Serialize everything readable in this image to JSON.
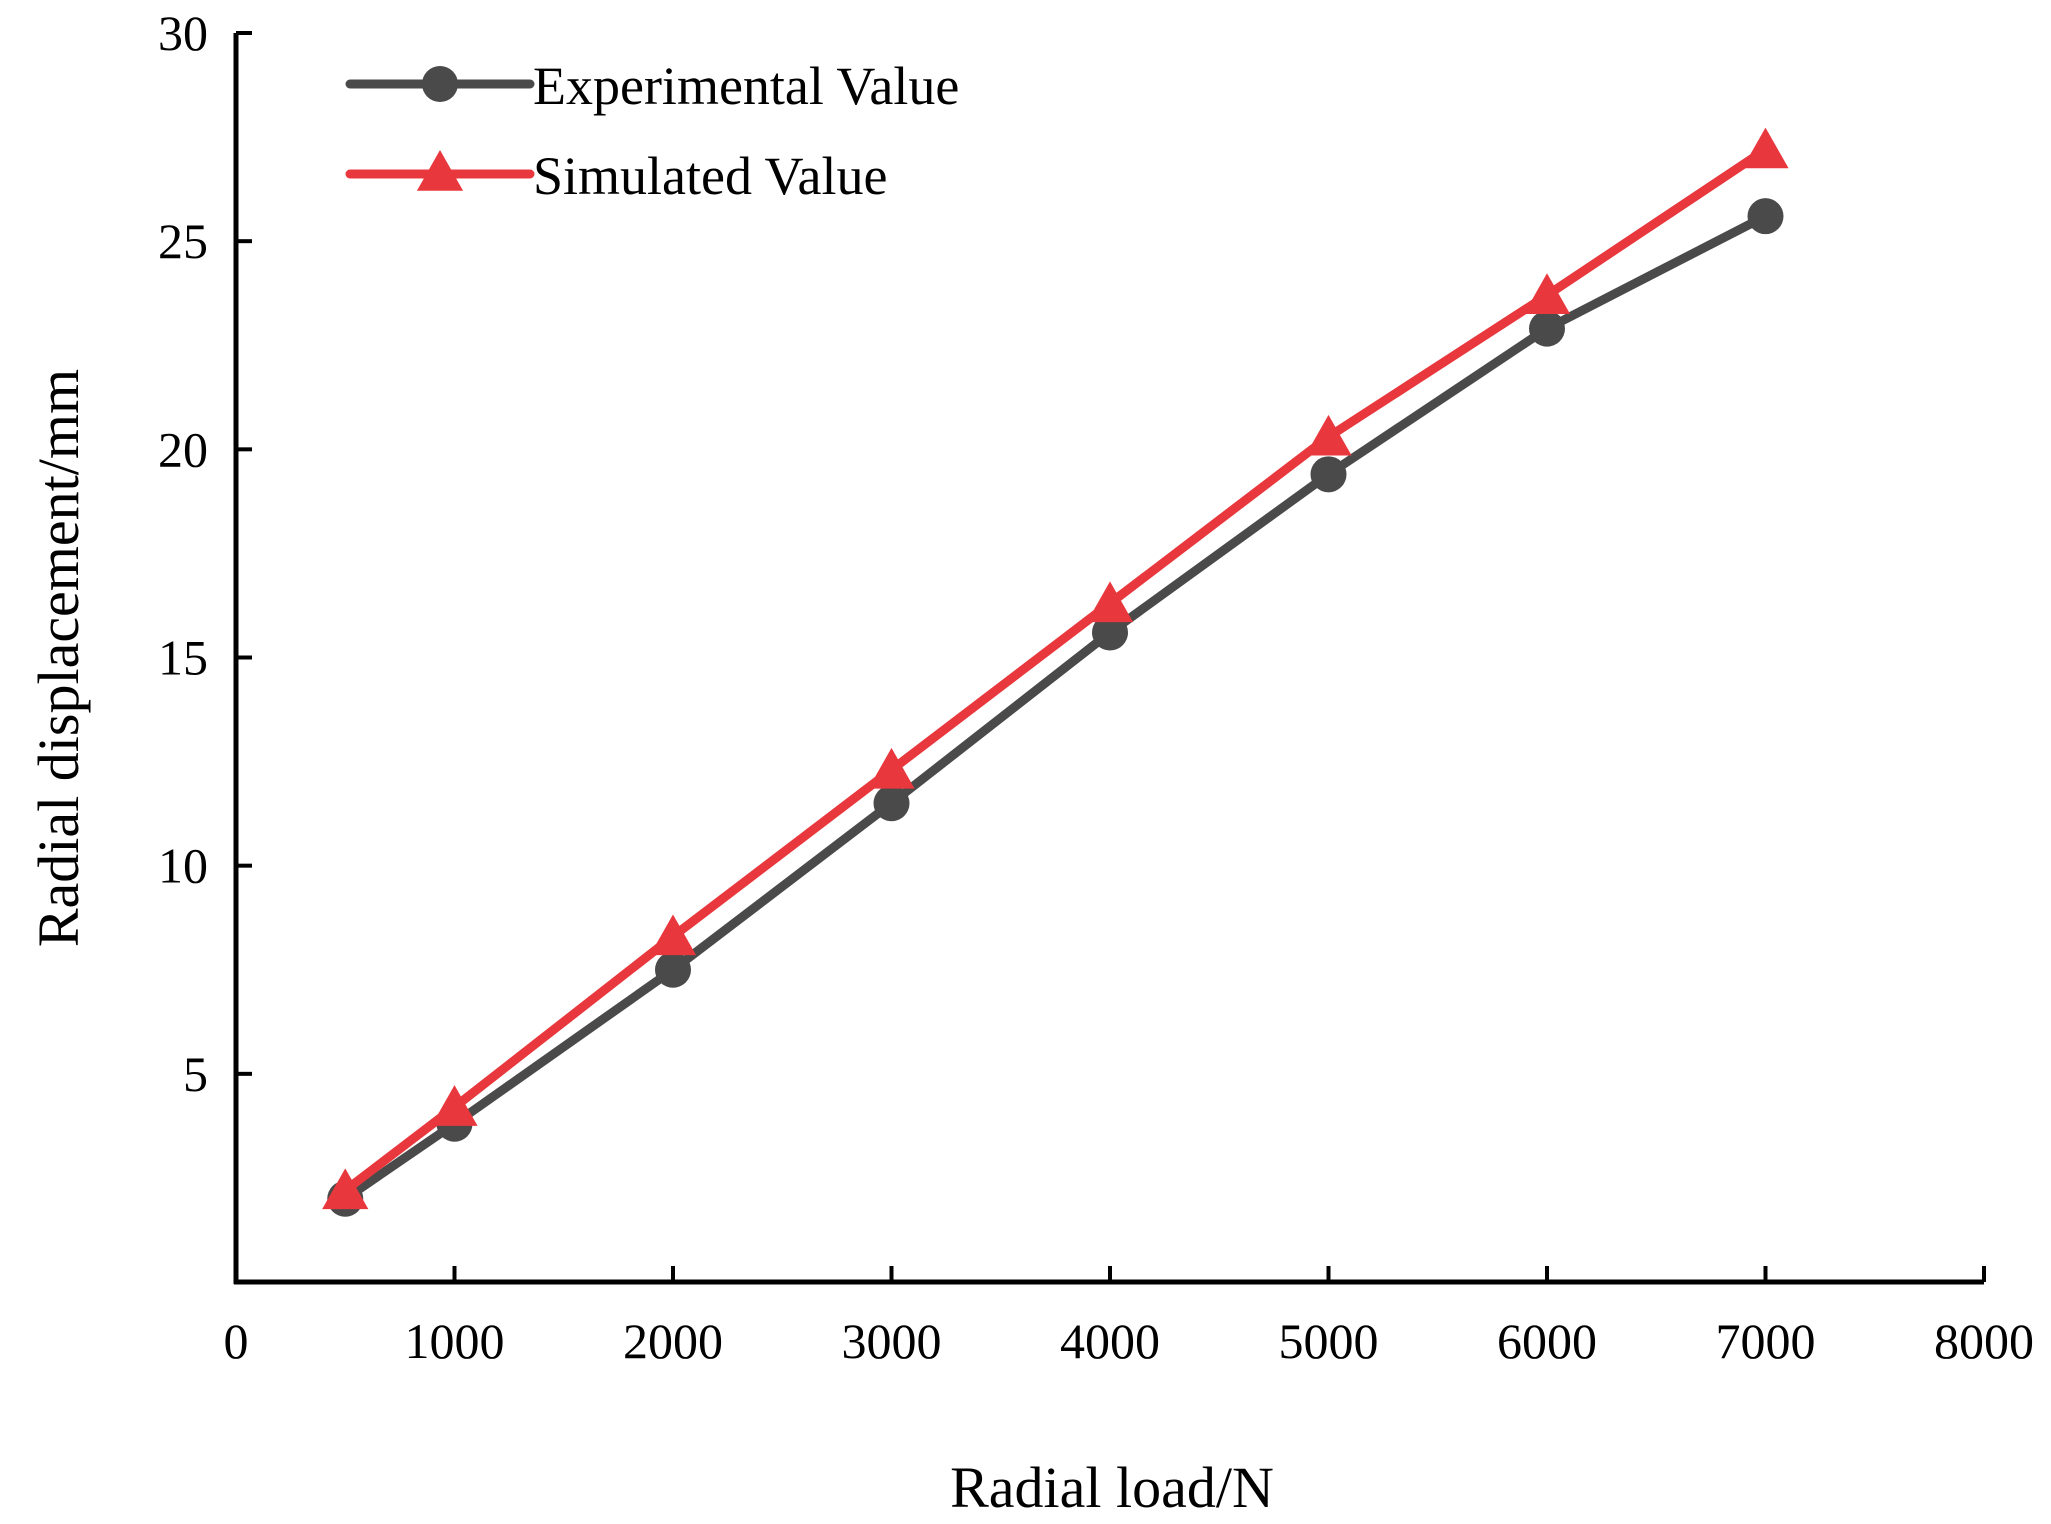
{
  "chart_data": {
    "type": "line",
    "title": "",
    "xlabel": "Radial load/N",
    "ylabel": "Radial displacement/mm",
    "xlim": [
      0,
      8000
    ],
    "ylim": [
      0,
      30
    ],
    "xticks": [
      0,
      1000,
      2000,
      3000,
      4000,
      5000,
      6000,
      7000,
      8000
    ],
    "yticks": [
      5,
      10,
      15,
      20,
      25,
      30
    ],
    "grid": false,
    "legend_position": "top-left",
    "series": [
      {
        "name": "Experimental Value",
        "color": "#4a4a4a",
        "marker": "circle",
        "x": [
          500,
          1000,
          2000,
          3000,
          4000,
          5000,
          6000,
          7000
        ],
        "y": [
          2.0,
          3.8,
          7.5,
          11.5,
          15.6,
          19.4,
          22.9,
          25.6
        ]
      },
      {
        "name": "Simulated Value",
        "color": "#e8383d",
        "marker": "triangle",
        "x": [
          500,
          1000,
          2000,
          3000,
          4000,
          5000,
          6000,
          7000
        ],
        "y": [
          2.2,
          4.2,
          8.3,
          12.3,
          16.3,
          20.3,
          23.7,
          27.2
        ]
      }
    ]
  }
}
